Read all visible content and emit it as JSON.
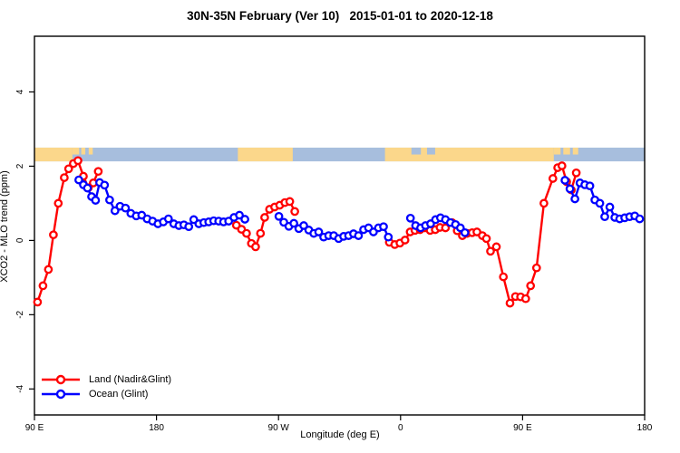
{
  "title": "30N-35N February (Ver 10)   2015-01-01 to 2020-12-18",
  "x_axis": {
    "label": "Longitude (deg E)",
    "ticks": [
      {
        "pos": 90,
        "label": "90 E"
      },
      {
        "pos": 180,
        "label": "180"
      },
      {
        "pos": 270,
        "label": "90 W"
      },
      {
        "pos": 360,
        "label": "0"
      },
      {
        "pos": 450,
        "label": "90 E"
      },
      {
        "pos": 540,
        "label": "180"
      }
    ]
  },
  "y_axis": {
    "label": "XCO2 - MLO trend (ppm)",
    "ticks": [
      {
        "pos": 4,
        "label": "4"
      },
      {
        "pos": 2,
        "label": "2"
      },
      {
        "pos": 0,
        "label": "0"
      },
      {
        "pos": -2,
        "label": "-2"
      },
      {
        "pos": -4,
        "label": "-4"
      }
    ]
  },
  "legend": [
    {
      "label": "Land (Nadir&Glint)",
      "color": "#ff0000"
    },
    {
      "label": "Ocean (Glint)",
      "color": "#0000ff"
    }
  ],
  "colors": {
    "land_series": "#ff0000",
    "ocean_series": "#0000ff",
    "strip_land": "#fbd78b",
    "strip_ocean": "#a7bedd",
    "axis": "#000000"
  },
  "chart_data": {
    "type": "line",
    "title": "30N-35N February (Ver 10)   2015-01-01 to 2020-12-18",
    "xlabel": "Longitude (deg E)",
    "ylabel": "XCO2 - MLO trend (ppm)",
    "xlim": [
      90,
      540
    ],
    "ylim": [
      -4.7,
      5.5
    ],
    "grid": false,
    "legend_position": "bottom-left",
    "marker": "open-circle",
    "map_strip": {
      "description": "land/ocean band along 30N-35N",
      "y_top_ppm": 2.5,
      "y_bottom_ppm": 2.13,
      "ocean_color": "#a7bedd",
      "land_color": "#fbd78b",
      "land_segments": [
        {
          "from": 90,
          "to": 118,
          "part": "full"
        },
        {
          "from": 118,
          "to": 123,
          "part": "top"
        },
        {
          "from": 124.5,
          "to": 127.5,
          "part": "top"
        },
        {
          "from": 130,
          "to": 133,
          "part": "top"
        },
        {
          "from": 240,
          "to": 280.5,
          "part": "full"
        },
        {
          "from": 348.5,
          "to": 473,
          "part": "full"
        },
        {
          "from": 473,
          "to": 478,
          "part": "top"
        },
        {
          "from": 480,
          "to": 485,
          "part": "top"
        },
        {
          "from": 487,
          "to": 491,
          "part": "top"
        }
      ],
      "ocean_notches": [
        {
          "from": 368,
          "to": 375,
          "part": "top"
        },
        {
          "from": 379.5,
          "to": 385.5,
          "part": "top"
        }
      ]
    },
    "series": [
      {
        "name": "Land (Nadir&Glint)",
        "color": "#ff0000",
        "segments": [
          [
            [
              92.3,
              -1.66
            ],
            [
              96.3,
              -1.22
            ],
            [
              100.3,
              -0.78
            ],
            [
              104,
              0.15
            ],
            [
              107.6,
              1.0
            ],
            [
              112,
              1.69
            ],
            [
              115.2,
              1.93
            ],
            [
              118.7,
              2.07
            ],
            [
              122.1,
              2.15
            ],
            [
              126.1,
              1.73
            ],
            [
              129.7,
              1.42
            ],
            [
              133.4,
              1.55
            ],
            [
              137.1,
              1.86
            ]
          ],
          [
            [
              238.9,
              0.41
            ],
            [
              242.7,
              0.3
            ],
            [
              246.4,
              0.19
            ],
            [
              250,
              -0.08
            ],
            [
              253.1,
              -0.17
            ],
            [
              256.7,
              0.19
            ],
            [
              259.8,
              0.62
            ],
            [
              263.4,
              0.84
            ],
            [
              267.1,
              0.9
            ],
            [
              270.9,
              0.95
            ],
            [
              274.7,
              1.02
            ],
            [
              278.3,
              1.05
            ],
            [
              282,
              0.78
            ]
          ],
          [
            [
              351.7,
              -0.05
            ],
            [
              355.7,
              -0.11
            ],
            [
              359.5,
              -0.07
            ],
            [
              363.3,
              0.01
            ],
            [
              367.1,
              0.23
            ],
            [
              370.6,
              0.27
            ],
            [
              374.4,
              0.29
            ],
            [
              378,
              0.34
            ],
            [
              381.8,
              0.27
            ],
            [
              385.6,
              0.29
            ],
            [
              389.1,
              0.35
            ],
            [
              393.1,
              0.34
            ],
            [
              398,
              0.48
            ],
            [
              401.8,
              0.26
            ],
            [
              405.6,
              0.13
            ],
            [
              409.1,
              0.19
            ],
            [
              412.8,
              0.21
            ],
            [
              416.3,
              0.23
            ],
            [
              420.3,
              0.13
            ],
            [
              423.3,
              0.05
            ],
            [
              426.3,
              -0.29
            ],
            [
              430.7,
              -0.17
            ],
            [
              435.8,
              -0.98
            ],
            [
              440.7,
              -1.69
            ],
            [
              444.7,
              -1.51
            ],
            [
              448.5,
              -1.52
            ],
            [
              452.3,
              -1.57
            ],
            [
              455.9,
              -1.22
            ],
            [
              460.3,
              -0.74
            ],
            [
              465.7,
              1.0
            ],
            [
              472.3,
              1.67
            ],
            [
              475.9,
              1.96
            ],
            [
              479,
              2.01
            ],
            [
              482.5,
              1.58
            ],
            [
              485.9,
              1.36
            ],
            [
              489.6,
              1.82
            ]
          ]
        ]
      },
      {
        "name": "Ocean (Glint)",
        "color": "#0000ff",
        "segments": [
          [
            [
              122.7,
              1.63
            ],
            [
              126.1,
              1.5
            ],
            [
              129.1,
              1.41
            ],
            [
              132.1,
              1.18
            ],
            [
              135.1,
              1.08
            ],
            [
              138.1,
              1.56
            ],
            [
              141.7,
              1.49
            ],
            [
              145.4,
              1.09
            ],
            [
              149.4,
              0.8
            ],
            [
              153.1,
              0.92
            ],
            [
              157.1,
              0.87
            ],
            [
              161.1,
              0.73
            ],
            [
              165.1,
              0.66
            ],
            [
              169.1,
              0.68
            ],
            [
              173.1,
              0.58
            ],
            [
              177.1,
              0.52
            ],
            [
              181.1,
              0.45
            ],
            [
              185.1,
              0.5
            ],
            [
              188.8,
              0.58
            ],
            [
              192.8,
              0.45
            ],
            [
              196.5,
              0.4
            ],
            [
              200.2,
              0.42
            ],
            [
              203.8,
              0.37
            ],
            [
              207.5,
              0.56
            ],
            [
              211.2,
              0.45
            ],
            [
              214.9,
              0.48
            ],
            [
              218.5,
              0.5
            ],
            [
              222.2,
              0.53
            ],
            [
              225.9,
              0.52
            ],
            [
              229.5,
              0.5
            ],
            [
              233.2,
              0.52
            ],
            [
              237.2,
              0.62
            ],
            [
              241.2,
              0.68
            ],
            [
              245.2,
              0.57
            ]
          ],
          [
            [
              270.3,
              0.65
            ],
            [
              273.9,
              0.49
            ],
            [
              277.6,
              0.38
            ],
            [
              281.3,
              0.46
            ],
            [
              285,
              0.32
            ],
            [
              288.6,
              0.4
            ],
            [
              292.3,
              0.28
            ],
            [
              296,
              0.19
            ],
            [
              299.6,
              0.23
            ],
            [
              303.3,
              0.09
            ],
            [
              307,
              0.13
            ],
            [
              310.7,
              0.13
            ],
            [
              314.3,
              0.05
            ],
            [
              318,
              0.11
            ],
            [
              321.7,
              0.13
            ],
            [
              325.3,
              0.18
            ],
            [
              329,
              0.13
            ],
            [
              332.7,
              0.29
            ],
            [
              336.4,
              0.34
            ],
            [
              340,
              0.23
            ],
            [
              343.7,
              0.34
            ],
            [
              347.4,
              0.37
            ],
            [
              351,
              0.09
            ]
          ],
          [
            [
              367.3,
              0.6
            ],
            [
              371.1,
              0.4
            ],
            [
              374.8,
              0.34
            ],
            [
              378.4,
              0.4
            ],
            [
              382.1,
              0.45
            ],
            [
              385.8,
              0.56
            ],
            [
              389.4,
              0.61
            ],
            [
              393.1,
              0.56
            ],
            [
              396.8,
              0.48
            ],
            [
              400.5,
              0.43
            ],
            [
              404.1,
              0.34
            ],
            [
              407.5,
              0.21
            ]
          ],
          [
            [
              481.2,
              1.62
            ],
            [
              484.9,
              1.39
            ],
            [
              488.6,
              1.12
            ],
            [
              492.3,
              1.55
            ],
            [
              495.9,
              1.5
            ],
            [
              499.6,
              1.47
            ],
            [
              503.3,
              1.09
            ],
            [
              507,
              1.0
            ],
            [
              510.6,
              0.64
            ],
            [
              514.3,
              0.9
            ],
            [
              518,
              0.62
            ],
            [
              521.6,
              0.58
            ],
            [
              525.3,
              0.61
            ],
            [
              529,
              0.64
            ],
            [
              532.7,
              0.66
            ],
            [
              536.3,
              0.58
            ]
          ]
        ]
      }
    ]
  }
}
